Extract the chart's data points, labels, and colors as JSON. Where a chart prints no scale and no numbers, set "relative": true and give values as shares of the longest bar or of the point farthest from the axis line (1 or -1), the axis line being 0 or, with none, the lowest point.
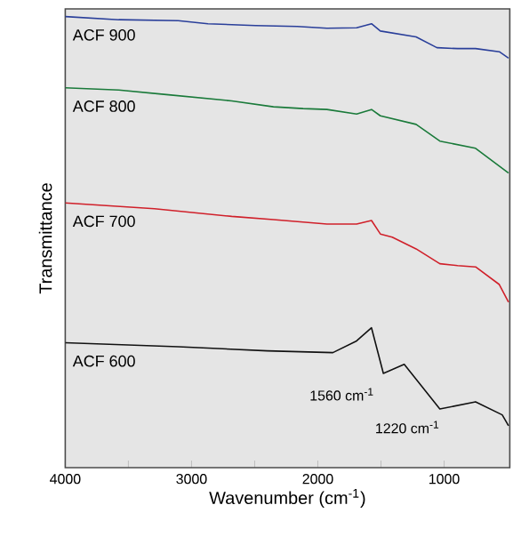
{
  "chart_data": {
    "type": "line",
    "relative": true,
    "xlabel": "Wavenumber (cm$^{-1}$)",
    "ylabel": "Transmittance",
    "xlim": [
      4000,
      480
    ],
    "xticks": [
      4000,
      {
        "value": 3500,
        "label": null
      },
      3000,
      {
        "value": 2500,
        "label": null
      },
      2000,
      {
        "value": 1500,
        "label": null
      },
      1000
    ],
    "tick_labels": "x",
    "series": [
      {
        "name": "ACF 900",
        "color": "#2a3f9a",
        "x": [
          4000,
          3576,
          3105,
          2870,
          2493,
          2164,
          1928,
          1693,
          1575,
          1505,
          1222,
          1057,
          893,
          751,
          563,
          490
        ],
        "values": [
          1.0,
          0.993,
          0.991,
          0.984,
          0.98,
          0.978,
          0.974,
          0.975,
          0.984,
          0.968,
          0.955,
          0.931,
          0.929,
          0.929,
          0.922,
          0.908
        ]
      },
      {
        "name": "ACF 800",
        "color": "#1a7a3a",
        "x": [
          4000,
          3576,
          3200,
          2682,
          2352,
          2117,
          1928,
          1693,
          1575,
          1505,
          1222,
          1034,
          751,
          490
        ],
        "values": [
          0.842,
          0.837,
          0.827,
          0.813,
          0.8,
          0.796,
          0.794,
          0.784,
          0.794,
          0.78,
          0.761,
          0.724,
          0.708,
          0.653
        ]
      },
      {
        "name": "ACF 700",
        "color": "#d0202a",
        "x": [
          4000,
          3294,
          2682,
          2352,
          1928,
          1693,
          1575,
          1505,
          1411,
          1222,
          1034,
          893,
          751,
          563,
          490
        ],
        "values": [
          0.587,
          0.574,
          0.557,
          0.55,
          0.54,
          0.54,
          0.548,
          0.518,
          0.511,
          0.485,
          0.452,
          0.448,
          0.445,
          0.406,
          0.367
        ]
      },
      {
        "name": "ACF 600",
        "color": "#111111",
        "x": [
          4000,
          3105,
          2399,
          1881,
          1693,
          1575,
          1481,
          1316,
          1034,
          751,
          540,
          490
        ],
        "values": [
          0.277,
          0.268,
          0.259,
          0.255,
          0.281,
          0.31,
          0.209,
          0.229,
          0.13,
          0.146,
          0.117,
          0.093
        ]
      }
    ],
    "annotations": [
      "1560 cm$^{-1}$",
      {
        "text": "1220 cm$^{-1}$",
        "x": 1220,
        "y": 0.195
      }
    ]
  }
}
